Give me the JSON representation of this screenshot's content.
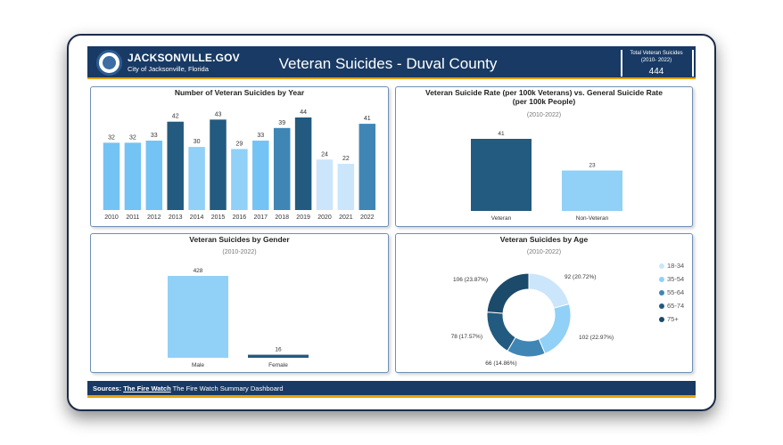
{
  "header": {
    "brand": "JACKSONVILLE.GOV",
    "brand_sub": "City of Jacksonville, Florida",
    "title": "Veteran Suicides - Duval County",
    "kpi_label_line1": "Total Veteran Suicides",
    "kpi_label_line2": "(2010- 2022)",
    "kpi_value": "444"
  },
  "colors": {
    "navy": "#183a64",
    "gold": "#e8a20d",
    "light_blue": "#74c3f5",
    "mid_blue": "#3f86b5",
    "dark_blue": "#235a7f",
    "pale_blue": "#cbe6fb",
    "sky_blue": "#91d0f7"
  },
  "chart_data": [
    {
      "type": "bar",
      "title": "Number of Veteran Suicides by Year",
      "categories": [
        "2010",
        "2011",
        "2012",
        "2013",
        "2014",
        "2015",
        "2016",
        "2017",
        "2018",
        "2019",
        "2020",
        "2021",
        "2022"
      ],
      "values": [
        32,
        32,
        33,
        42,
        30,
        43,
        29,
        33,
        39,
        44,
        24,
        22,
        41
      ],
      "bar_colors": [
        "#74c3f5",
        "#74c3f5",
        "#74c3f5",
        "#235a7f",
        "#91d0f7",
        "#235a7f",
        "#91d0f7",
        "#74c3f5",
        "#3f86b5",
        "#235a7f",
        "#cbe6fb",
        "#cbe6fb",
        "#3f86b5"
      ],
      "xlabel": "",
      "ylabel": "",
      "ylim": [
        0,
        44
      ]
    },
    {
      "type": "bar",
      "title": "Veteran Suicide Rate (per 100k Veterans) vs. General Suicide Rate (per 100k People)",
      "subtitle": "(2010-2022)",
      "categories": [
        "Veteran",
        "Non-Veteran"
      ],
      "values": [
        41,
        23
      ],
      "bar_colors": [
        "#235a7f",
        "#91d0f7"
      ],
      "ylim": [
        0,
        41
      ]
    },
    {
      "type": "bar",
      "title": "Veteran Suicides by Gender",
      "subtitle": "(2010-2022)",
      "categories": [
        "Male",
        "Female"
      ],
      "values": [
        428,
        16
      ],
      "bar_colors": [
        "#91d0f7",
        "#235a7f"
      ],
      "ylim": [
        0,
        428
      ]
    },
    {
      "type": "pie",
      "title": "Veteran Suicides by Age",
      "subtitle": "(2010-2022)",
      "labels": [
        "18-34",
        "35-54",
        "55-64",
        "65-74",
        "75+"
      ],
      "values": [
        92,
        102,
        66,
        78,
        106
      ],
      "data_labels": [
        "92 (20.72%)",
        "102 (22.97%)",
        "66 (14.86%)",
        "78 (17.57%)",
        "106 (23.87%)"
      ],
      "colors": [
        "#cbe6fb",
        "#91d0f7",
        "#3f86b5",
        "#235a7f",
        "#1b4a6b"
      ],
      "legend": "right"
    }
  ],
  "footer": {
    "sources_label": "Sources:",
    "link_text": "The Fire Watch",
    "description": "The Fire Watch Summary Dashboard"
  }
}
